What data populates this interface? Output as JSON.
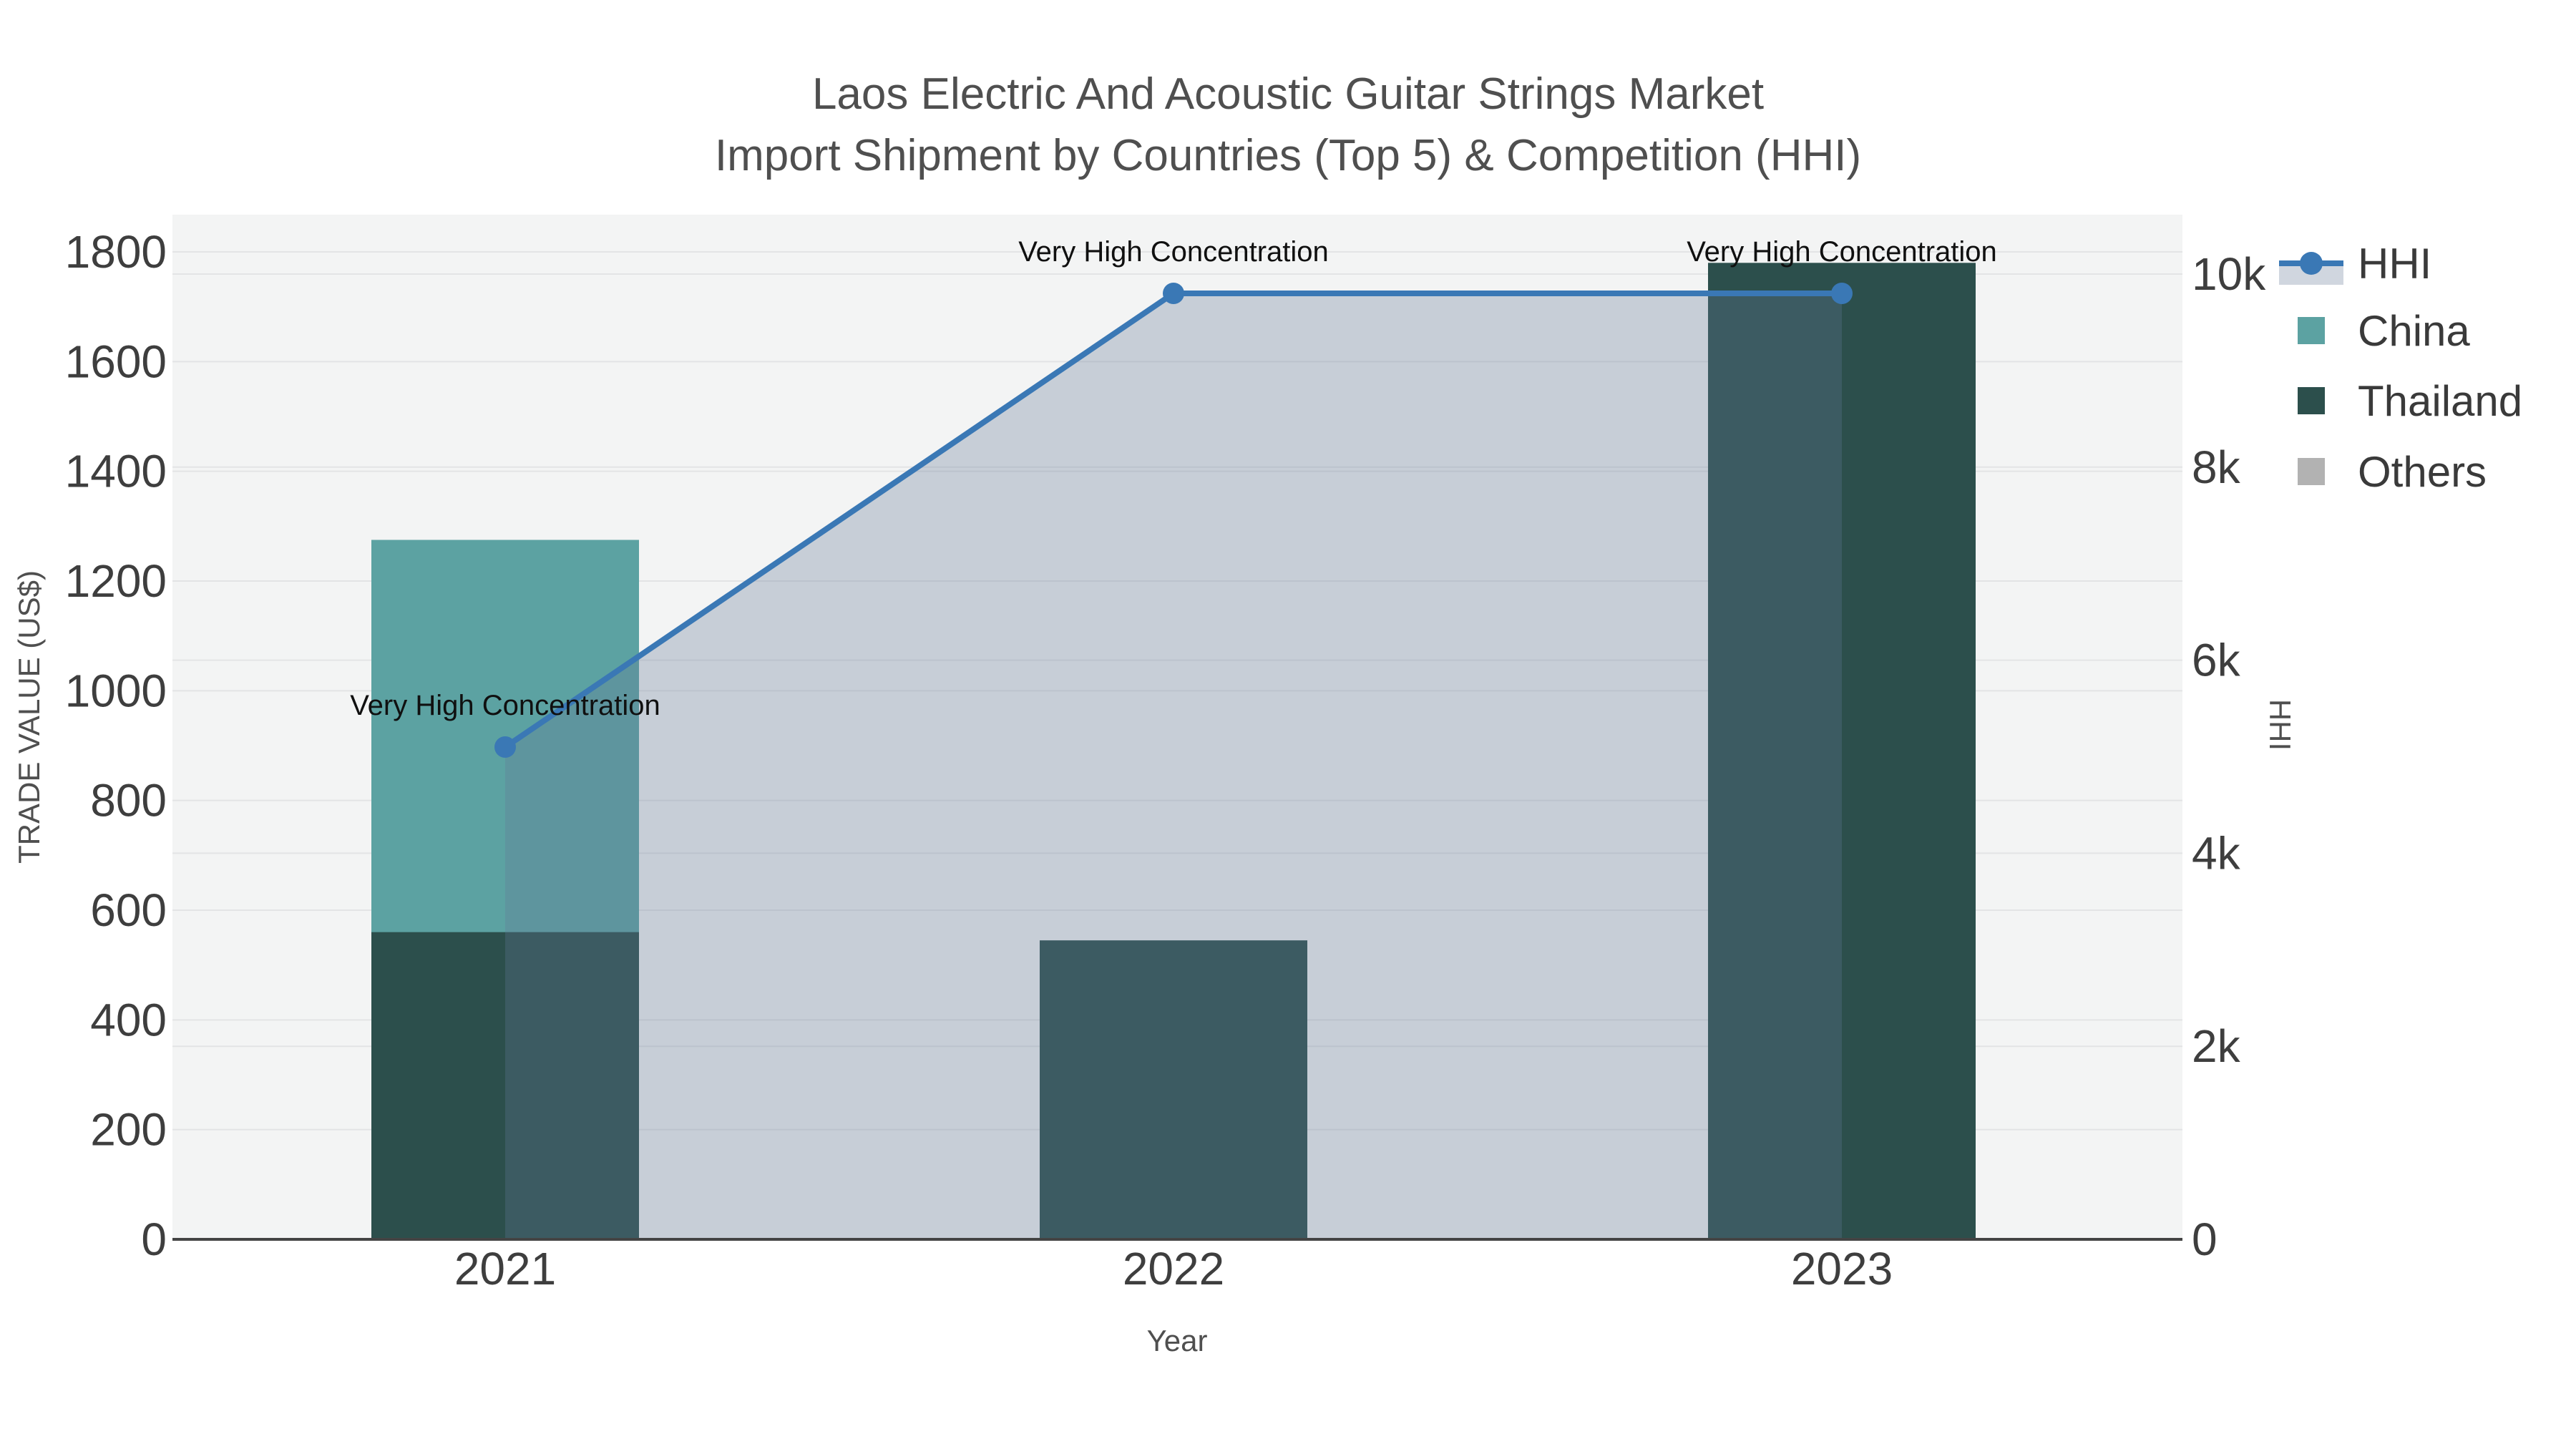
{
  "title": {
    "line1": "Laos Electric And Acoustic Guitar Strings Market",
    "line2": "Import Shipment by Countries (Top 5) & Competition (HHI)"
  },
  "legend": {
    "items": [
      {
        "label": "HHI",
        "type": "line-marker",
        "color": "#3a78b5"
      },
      {
        "label": "China",
        "type": "square",
        "color": "#5ca2a2"
      },
      {
        "label": "Thailand",
        "type": "square",
        "color": "#2c4f4c"
      },
      {
        "label": "Others",
        "type": "square",
        "color": "#b2b2b2"
      }
    ]
  },
  "axes": {
    "x": {
      "title": "Year",
      "ticks": [
        "2021",
        "2022",
        "2023"
      ]
    },
    "y_left": {
      "title": "TRADE VALUE (US$)",
      "ticks": [
        "0",
        "200",
        "400",
        "600",
        "800",
        "1000",
        "1200",
        "1400",
        "1600",
        "1800"
      ],
      "range": [
        0,
        1886
      ]
    },
    "y_right": {
      "title": "HHI",
      "ticks": [
        "0",
        "2k",
        "4k",
        "6k",
        "8k",
        "10k"
      ],
      "range": [
        0,
        10700
      ]
    }
  },
  "chart_data": {
    "type": "bar+line",
    "categories": [
      "2021",
      "2022",
      "2023"
    ],
    "bar_series": [
      {
        "name": "China",
        "color": "#5ca2a2",
        "values": [
          1275,
          0,
          0
        ]
      },
      {
        "name": "Thailand",
        "color": "#2c4f4c",
        "values": [
          560,
          545,
          1780
        ]
      },
      {
        "name": "Others",
        "color": "#b2b2b2",
        "values": [
          0,
          0,
          0
        ]
      }
    ],
    "line_series": {
      "name": "HHI",
      "color": "#3a78b5",
      "fill_color": "rgba(100,120,150,0.30)",
      "values": [
        5100,
        9800,
        9800
      ],
      "axis": "right"
    },
    "annotations": [
      {
        "category": "2021",
        "text": "Very High Concentration"
      },
      {
        "category": "2022",
        "text": "Very High Concentration"
      },
      {
        "category": "2023",
        "text": "Very High Concentration"
      }
    ],
    "title": "Laos Electric And Acoustic Guitar Strings Market Import Shipment by Countries (Top 5) & Competition (HHI)",
    "xlabel": "Year",
    "ylabel_left": "TRADE VALUE (US$)",
    "ylabel_right": "HHI",
    "ylim_left": [
      0,
      1886
    ],
    "ylim_right": [
      0,
      10700
    ],
    "grid": true,
    "legend_position": "right",
    "plot_bg": "#f3f4f4",
    "grid_color": "#e3e4e5",
    "axis_line_color": "#444444"
  }
}
